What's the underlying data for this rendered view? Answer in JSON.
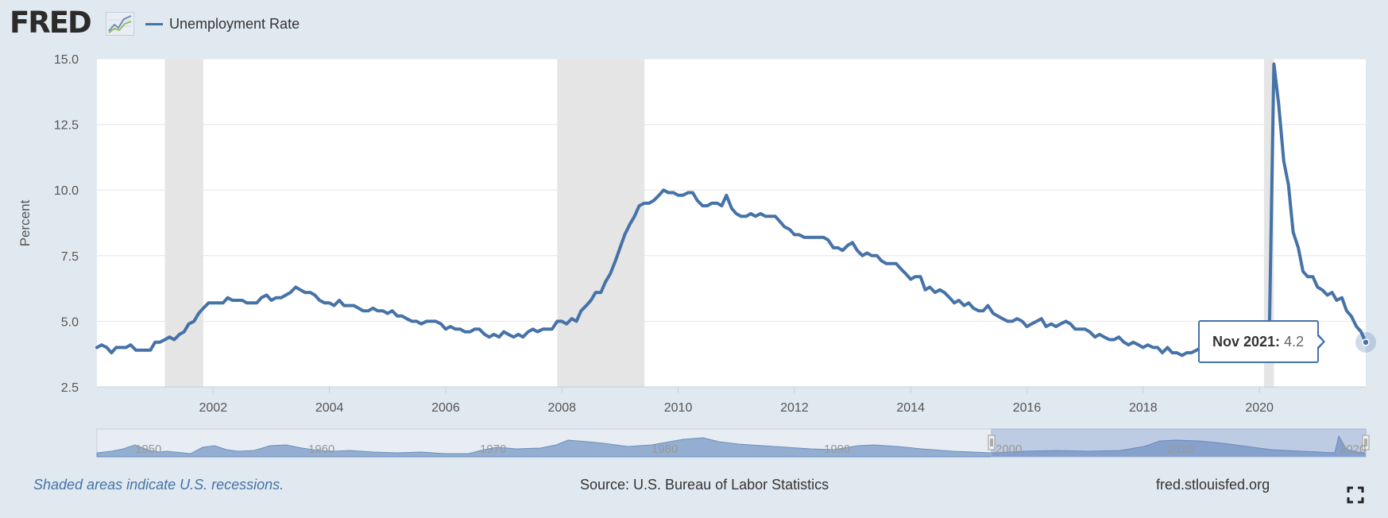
{
  "header": {
    "logo_text": "FRED",
    "logo_mark": "®",
    "legend_label": "Unemployment Rate"
  },
  "colors": {
    "page_background": "#e1e9f0",
    "series": "#4572a7",
    "recession_shade": "#e5e5e5",
    "navigator_fill": "#94aed2",
    "navigator_selection": "#c0cfea"
  },
  "icons": {
    "logo_graph": "line-graph-icon",
    "fullscreen": "fullscreen-expand-icon"
  },
  "footer": {
    "recession_note": "Shaded areas indicate U.S. recessions.",
    "source": "Source: U.S. Bureau of Labor Statistics",
    "site": "fred.stlouisfed.org"
  },
  "tooltip": {
    "date_label": "Nov 2021:",
    "value": "4.2"
  },
  "chart_data": {
    "type": "line",
    "title": "",
    "xlabel": "",
    "ylabel": "Percent",
    "xlim": [
      2000.0,
      2021.83
    ],
    "ylim": [
      2.5,
      15.0
    ],
    "y_ticks": [
      "2.5",
      "5.0",
      "7.5",
      "10.0",
      "12.5",
      "15.0"
    ],
    "x_ticks": [
      "2002",
      "2004",
      "2006",
      "2008",
      "2010",
      "2012",
      "2014",
      "2016",
      "2018",
      "2020"
    ],
    "grid": true,
    "legend": "top-left",
    "recessions": [
      [
        2001.17,
        2001.83
      ],
      [
        2007.92,
        2009.42
      ],
      [
        2020.08,
        2020.25
      ]
    ],
    "series": [
      {
        "name": "Unemployment Rate",
        "x": [
          2000.0,
          2000.08,
          2000.17,
          2000.25,
          2000.33,
          2000.42,
          2000.5,
          2000.58,
          2000.67,
          2000.75,
          2000.83,
          2000.92,
          2001.0,
          2001.08,
          2001.17,
          2001.25,
          2001.33,
          2001.42,
          2001.5,
          2001.58,
          2001.67,
          2001.75,
          2001.83,
          2001.92,
          2002.0,
          2002.08,
          2002.17,
          2002.25,
          2002.33,
          2002.42,
          2002.5,
          2002.58,
          2002.67,
          2002.75,
          2002.83,
          2002.92,
          2003.0,
          2003.08,
          2003.17,
          2003.25,
          2003.33,
          2003.42,
          2003.5,
          2003.58,
          2003.67,
          2003.75,
          2003.83,
          2003.92,
          2004.0,
          2004.08,
          2004.17,
          2004.25,
          2004.33,
          2004.42,
          2004.5,
          2004.58,
          2004.67,
          2004.75,
          2004.83,
          2004.92,
          2005.0,
          2005.08,
          2005.17,
          2005.25,
          2005.33,
          2005.42,
          2005.5,
          2005.58,
          2005.67,
          2005.75,
          2005.83,
          2005.92,
          2006.0,
          2006.08,
          2006.17,
          2006.25,
          2006.33,
          2006.42,
          2006.5,
          2006.58,
          2006.67,
          2006.75,
          2006.83,
          2006.92,
          2007.0,
          2007.08,
          2007.17,
          2007.25,
          2007.33,
          2007.42,
          2007.5,
          2007.58,
          2007.67,
          2007.75,
          2007.83,
          2007.92,
          2008.0,
          2008.08,
          2008.17,
          2008.25,
          2008.33,
          2008.42,
          2008.5,
          2008.58,
          2008.67,
          2008.75,
          2008.83,
          2008.92,
          2009.0,
          2009.08,
          2009.17,
          2009.25,
          2009.33,
          2009.42,
          2009.5,
          2009.58,
          2009.67,
          2009.75,
          2009.83,
          2009.92,
          2010.0,
          2010.08,
          2010.17,
          2010.25,
          2010.33,
          2010.42,
          2010.5,
          2010.58,
          2010.67,
          2010.75,
          2010.83,
          2010.92,
          2011.0,
          2011.08,
          2011.17,
          2011.25,
          2011.33,
          2011.42,
          2011.5,
          2011.58,
          2011.67,
          2011.75,
          2011.83,
          2011.92,
          2012.0,
          2012.08,
          2012.17,
          2012.25,
          2012.33,
          2012.42,
          2012.5,
          2012.58,
          2012.67,
          2012.75,
          2012.83,
          2012.92,
          2013.0,
          2013.08,
          2013.17,
          2013.25,
          2013.33,
          2013.42,
          2013.5,
          2013.58,
          2013.67,
          2013.75,
          2013.83,
          2013.92,
          2014.0,
          2014.08,
          2014.17,
          2014.25,
          2014.33,
          2014.42,
          2014.5,
          2014.58,
          2014.67,
          2014.75,
          2014.83,
          2014.92,
          2015.0,
          2015.08,
          2015.17,
          2015.25,
          2015.33,
          2015.42,
          2015.5,
          2015.58,
          2015.67,
          2015.75,
          2015.83,
          2015.92,
          2016.0,
          2016.08,
          2016.17,
          2016.25,
          2016.33,
          2016.42,
          2016.5,
          2016.58,
          2016.67,
          2016.75,
          2016.83,
          2016.92,
          2017.0,
          2017.08,
          2017.17,
          2017.25,
          2017.33,
          2017.42,
          2017.5,
          2017.58,
          2017.67,
          2017.75,
          2017.83,
          2017.92,
          2018.0,
          2018.08,
          2018.17,
          2018.25,
          2018.33,
          2018.42,
          2018.5,
          2018.58,
          2018.67,
          2018.75,
          2018.83,
          2018.92,
          2019.0,
          2019.08,
          2019.17,
          2019.25,
          2019.33,
          2019.42,
          2019.5,
          2019.58,
          2019.67,
          2019.75,
          2019.83,
          2019.92,
          2020.0,
          2020.08,
          2020.17,
          2020.25,
          2020.33,
          2020.42,
          2020.5,
          2020.58,
          2020.67,
          2020.75,
          2020.83,
          2020.92,
          2021.0,
          2021.08,
          2021.17,
          2021.25,
          2021.33,
          2021.42,
          2021.5,
          2021.58,
          2021.67,
          2021.75,
          2021.83
        ],
        "y": [
          4.0,
          4.1,
          4.0,
          3.8,
          4.0,
          4.0,
          4.0,
          4.1,
          3.9,
          3.9,
          3.9,
          3.9,
          4.2,
          4.2,
          4.3,
          4.4,
          4.3,
          4.5,
          4.6,
          4.9,
          5.0,
          5.3,
          5.5,
          5.7,
          5.7,
          5.7,
          5.7,
          5.9,
          5.8,
          5.8,
          5.8,
          5.7,
          5.7,
          5.7,
          5.9,
          6.0,
          5.8,
          5.9,
          5.9,
          6.0,
          6.1,
          6.3,
          6.2,
          6.1,
          6.1,
          6.0,
          5.8,
          5.7,
          5.7,
          5.6,
          5.8,
          5.6,
          5.6,
          5.6,
          5.5,
          5.4,
          5.4,
          5.5,
          5.4,
          5.4,
          5.3,
          5.4,
          5.2,
          5.2,
          5.1,
          5.0,
          5.0,
          4.9,
          5.0,
          5.0,
          5.0,
          4.9,
          4.7,
          4.8,
          4.7,
          4.7,
          4.6,
          4.6,
          4.7,
          4.7,
          4.5,
          4.4,
          4.5,
          4.4,
          4.6,
          4.5,
          4.4,
          4.5,
          4.4,
          4.6,
          4.7,
          4.6,
          4.7,
          4.7,
          4.7,
          5.0,
          5.0,
          4.9,
          5.1,
          5.0,
          5.4,
          5.6,
          5.8,
          6.1,
          6.1,
          6.5,
          6.8,
          7.3,
          7.8,
          8.3,
          8.7,
          9.0,
          9.4,
          9.5,
          9.5,
          9.6,
          9.8,
          10.0,
          9.9,
          9.9,
          9.8,
          9.8,
          9.9,
          9.9,
          9.6,
          9.4,
          9.4,
          9.5,
          9.5,
          9.4,
          9.8,
          9.3,
          9.1,
          9.0,
          9.0,
          9.1,
          9.0,
          9.1,
          9.0,
          9.0,
          9.0,
          8.8,
          8.6,
          8.5,
          8.3,
          8.3,
          8.2,
          8.2,
          8.2,
          8.2,
          8.2,
          8.1,
          7.8,
          7.8,
          7.7,
          7.9,
          8.0,
          7.7,
          7.5,
          7.6,
          7.5,
          7.5,
          7.3,
          7.2,
          7.2,
          7.2,
          7.0,
          6.8,
          6.6,
          6.7,
          6.7,
          6.2,
          6.3,
          6.1,
          6.2,
          6.1,
          5.9,
          5.7,
          5.8,
          5.6,
          5.7,
          5.5,
          5.4,
          5.4,
          5.6,
          5.3,
          5.2,
          5.1,
          5.0,
          5.0,
          5.1,
          5.0,
          4.8,
          4.9,
          5.0,
          5.1,
          4.8,
          4.9,
          4.8,
          4.9,
          5.0,
          4.9,
          4.7,
          4.7,
          4.7,
          4.6,
          4.4,
          4.5,
          4.4,
          4.3,
          4.3,
          4.4,
          4.2,
          4.1,
          4.2,
          4.1,
          4.0,
          4.1,
          4.0,
          4.0,
          3.8,
          4.0,
          3.8,
          3.8,
          3.7,
          3.8,
          3.8,
          3.9,
          4.0,
          3.8,
          3.8,
          3.7,
          3.6,
          3.6,
          3.7,
          3.6,
          3.5,
          3.6,
          3.6,
          3.6,
          3.5,
          3.5,
          4.4,
          14.8,
          13.3,
          11.1,
          10.2,
          8.4,
          7.8,
          6.9,
          6.7,
          6.7,
          6.3,
          6.2,
          6.0,
          6.1,
          5.8,
          5.9,
          5.4,
          5.2,
          4.8,
          4.6,
          4.2
        ]
      }
    ]
  }
}
